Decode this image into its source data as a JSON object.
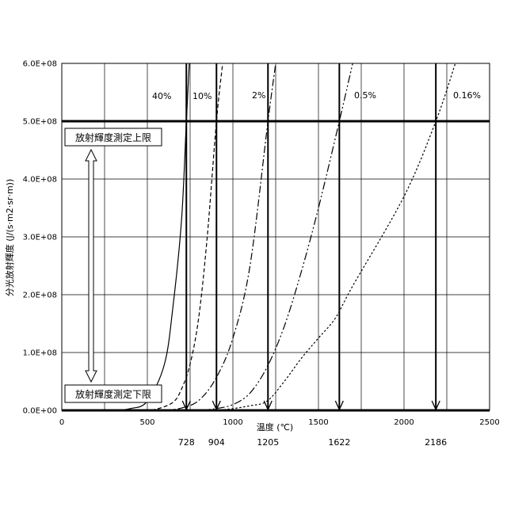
{
  "chart_data": {
    "type": "line",
    "title": "",
    "xlabel": "温度 (℃)",
    "ylabel": "分光放射輝度 (J/(s·m2·sr·m))",
    "xlim": [
      0,
      2500
    ],
    "ylim": [
      0,
      600000000
    ],
    "x_ticks": [
      "0",
      "500",
      "1000",
      "1500",
      "2000",
      "2500"
    ],
    "x_tick_values": [
      0,
      500,
      1000,
      1500,
      2000,
      2500
    ],
    "y_ticks": [
      "0.0E+00",
      "1.0E+08",
      "2.0E+08",
      "3.0E+08",
      "4.0E+08",
      "5.0E+08",
      "6.0E+08"
    ],
    "y_tick_values": [
      0,
      100000000,
      200000000,
      300000000,
      400000000,
      500000000,
      600000000
    ],
    "grid": true,
    "series": [
      {
        "name": "40%",
        "style": "solid",
        "points": [
          [
            300,
            0
          ],
          [
            400,
            3000000
          ],
          [
            500,
            16000000
          ],
          [
            600,
            80000000
          ],
          [
            650,
            180000000
          ],
          [
            700,
            330000000
          ],
          [
            728,
            500000000
          ],
          [
            745,
            600000000
          ]
        ]
      },
      {
        "name": "10%",
        "style": "dashed",
        "points": [
          [
            450,
            0
          ],
          [
            550,
            2000000
          ],
          [
            650,
            14000000
          ],
          [
            700,
            37000000
          ],
          [
            750,
            80000000
          ],
          [
            800,
            160000000
          ],
          [
            850,
            300000000
          ],
          [
            904,
            500000000
          ],
          [
            940,
            600000000
          ]
        ]
      },
      {
        "name": "2%",
        "style": "dashdot",
        "points": [
          [
            600,
            0
          ],
          [
            700,
            4000000
          ],
          [
            800,
            17000000
          ],
          [
            900,
            55000000
          ],
          [
            1000,
            125000000
          ],
          [
            1100,
            250000000
          ],
          [
            1205,
            500000000
          ],
          [
            1250,
            600000000
          ]
        ]
      },
      {
        "name": "0.5%",
        "style": "dashdotdot",
        "points": [
          [
            800,
            0
          ],
          [
            900,
            3000000
          ],
          [
            1000,
            10000000
          ],
          [
            1100,
            30000000
          ],
          [
            1200,
            75000000
          ],
          [
            1300,
            145000000
          ],
          [
            1400,
            240000000
          ],
          [
            1500,
            350000000
          ],
          [
            1622,
            500000000
          ],
          [
            1700,
            600000000
          ]
        ]
      },
      {
        "name": "0.16%",
        "style": "dotted",
        "points": [
          [
            900,
            0
          ],
          [
            1000,
            3000000
          ],
          [
            1100,
            8000000
          ],
          [
            1200,
            16000000
          ],
          [
            1300,
            50000000
          ],
          [
            1400,
            90000000
          ],
          [
            1500,
            125000000
          ],
          [
            1600,
            160000000
          ],
          [
            1700,
            215000000
          ],
          [
            2000,
            370000000
          ],
          [
            2186,
            500000000
          ],
          [
            2300,
            600000000
          ]
        ]
      }
    ],
    "markers": [
      {
        "x": 728,
        "label": "728"
      },
      {
        "x": 904,
        "label": "904"
      },
      {
        "x": 1205,
        "label": "1205"
      },
      {
        "x": 1622,
        "label": "1622"
      },
      {
        "x": 2186,
        "label": "2186"
      }
    ],
    "upper_limit_value": 500000000,
    "upper_limit_label": "放射輝度測定上限",
    "lower_limit_label": "放射輝度測定下限",
    "legend": "none"
  },
  "styles": {
    "line_color": "#000000",
    "grid_color": "#000000"
  }
}
